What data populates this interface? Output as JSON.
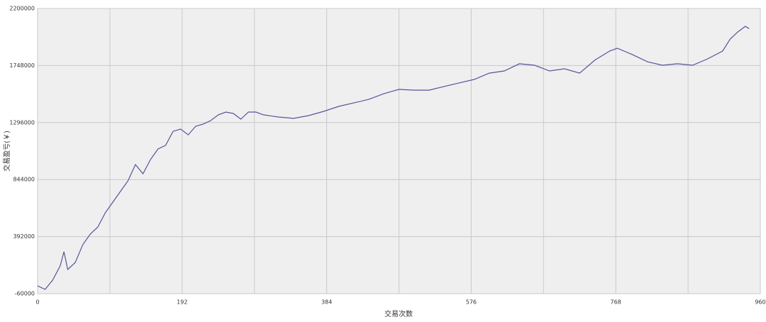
{
  "chart_data": {
    "type": "line",
    "xlabel": "交易次数",
    "ylabel": "交易盈亏(￥)",
    "xlim": [
      0,
      960
    ],
    "xticks": [
      0,
      192,
      384,
      576,
      768,
      960
    ],
    "ylim": [
      -60000,
      2200000
    ],
    "yticks": [
      -60000,
      392000,
      844000,
      1296000,
      1748000,
      2200000
    ],
    "grid": true,
    "series": [
      {
        "color": "#55559a",
        "x": [
          0,
          10,
          20,
          30,
          35,
          40,
          50,
          60,
          70,
          80,
          90,
          100,
          110,
          120,
          130,
          140,
          150,
          160,
          170,
          180,
          190,
          200,
          210,
          220,
          230,
          240,
          250,
          260,
          270,
          280,
          290,
          300,
          320,
          340,
          360,
          380,
          400,
          420,
          440,
          460,
          480,
          500,
          520,
          540,
          560,
          580,
          600,
          620,
          640,
          660,
          680,
          700,
          720,
          740,
          760,
          770,
          790,
          810,
          830,
          850,
          870,
          890,
          910,
          920,
          930,
          940,
          945
        ],
        "values": [
          1800,
          -26000,
          47000,
          159000,
          272000,
          131000,
          187000,
          328000,
          412000,
          468000,
          581000,
          665000,
          750000,
          834000,
          963000,
          890000,
          1003000,
          1087000,
          1115000,
          1227000,
          1244000,
          1199000,
          1267000,
          1284000,
          1312000,
          1357000,
          1379000,
          1368000,
          1323000,
          1379000,
          1379000,
          1357000,
          1340000,
          1329000,
          1351000,
          1385000,
          1424000,
          1452000,
          1480000,
          1525000,
          1559000,
          1553000,
          1553000,
          1582000,
          1610000,
          1638000,
          1688000,
          1705000,
          1762000,
          1750000,
          1705000,
          1722000,
          1688000,
          1790000,
          1863000,
          1885000,
          1835000,
          1778000,
          1750000,
          1762000,
          1750000,
          1801000,
          1863000,
          1958000,
          2014000,
          2059000,
          2041000
        ]
      }
    ]
  }
}
